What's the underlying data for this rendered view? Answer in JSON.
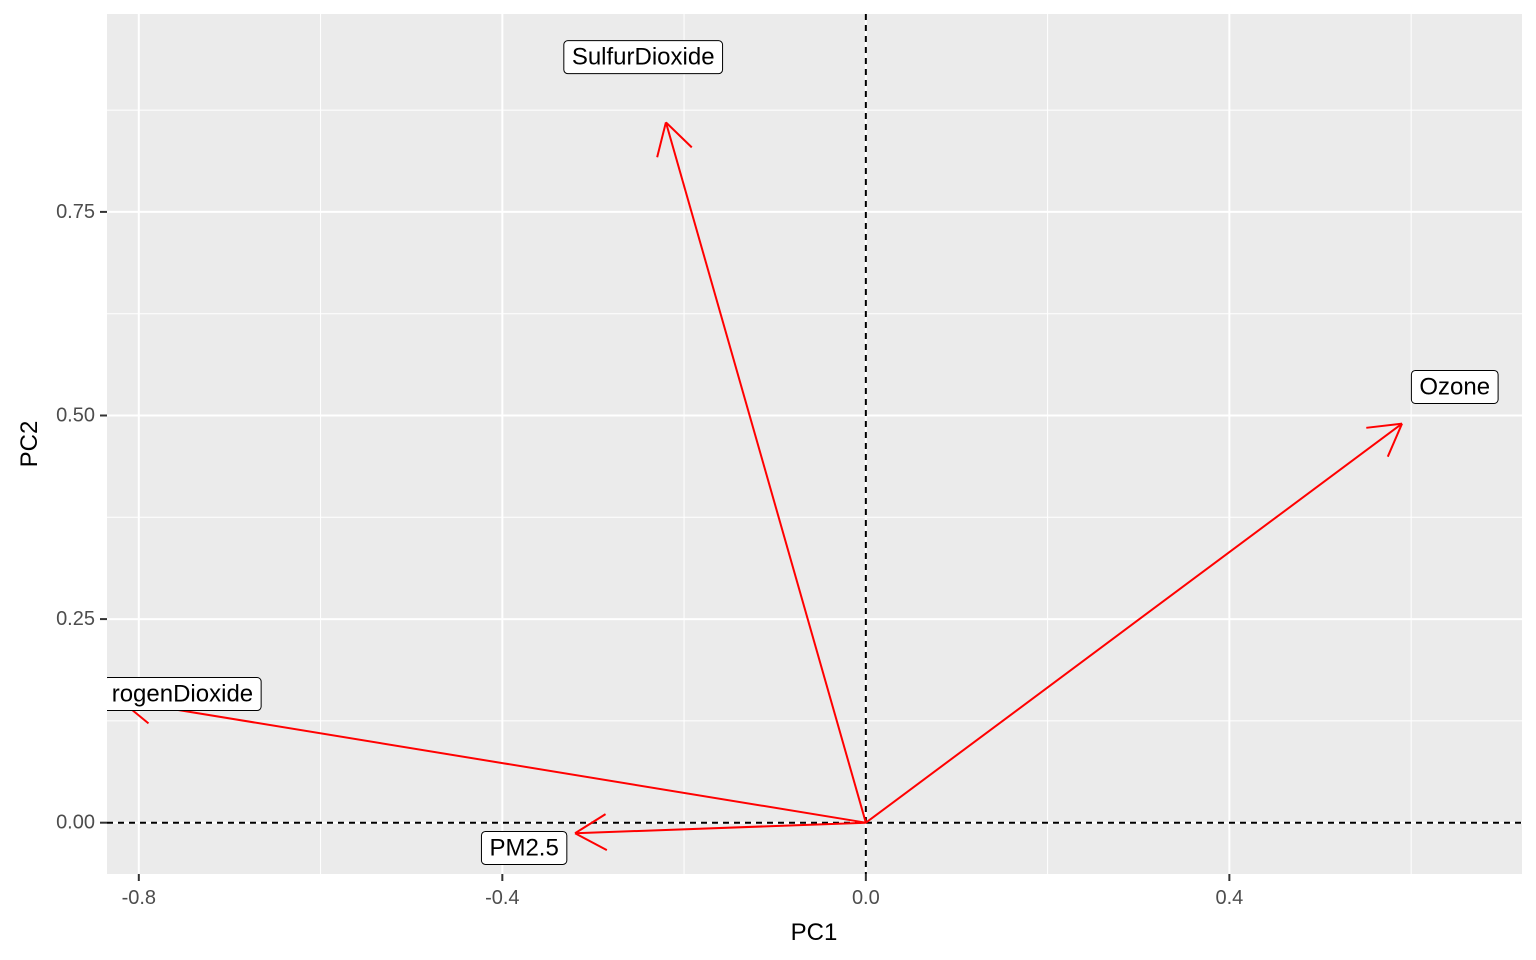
{
  "chart_data": {
    "type": "scatter",
    "subtype": "pca-loading-biplot",
    "title": "",
    "xlabel": "PC1",
    "ylabel": "PC2",
    "xlim": [
      -0.835,
      0.722
    ],
    "ylim": [
      -0.063,
      0.993
    ],
    "x_ticks": [
      {
        "value": -0.8,
        "label": "-0.8"
      },
      {
        "value": -0.4,
        "label": "-0.4"
      },
      {
        "value": 0.0,
        "label": "0.0"
      },
      {
        "value": 0.4,
        "label": "0.4"
      }
    ],
    "y_ticks": [
      {
        "value": 0.0,
        "label": "0.00"
      },
      {
        "value": 0.25,
        "label": "0.25"
      },
      {
        "value": 0.5,
        "label": "0.50"
      },
      {
        "value": 0.75,
        "label": "0.75"
      }
    ],
    "grid": true,
    "reference_lines": {
      "x": 0,
      "y": 0,
      "style": "dashed",
      "color": "#000000"
    },
    "arrow_color": "#ff0000",
    "panel_background": "#ebebeb",
    "vectors": [
      {
        "name": "SulfurDioxide",
        "x": -0.22,
        "y": 0.86
      },
      {
        "name": "Ozone",
        "x": 0.59,
        "y": 0.49
      },
      {
        "name": "NitrogenDioxide",
        "x": -0.82,
        "y": 0.15
      },
      {
        "name": "PM2.5",
        "x": -0.32,
        "y": -0.013
      }
    ],
    "labels": [
      {
        "text": "SulfurDioxide",
        "x": -0.245,
        "y": 0.94
      },
      {
        "text": "Ozone",
        "x": 0.648,
        "y": 0.535
      },
      {
        "text": "rogenDioxide",
        "x": -0.752,
        "y": 0.158
      },
      {
        "text": "PM2.5",
        "x": -0.376,
        "y": -0.031
      }
    ]
  }
}
